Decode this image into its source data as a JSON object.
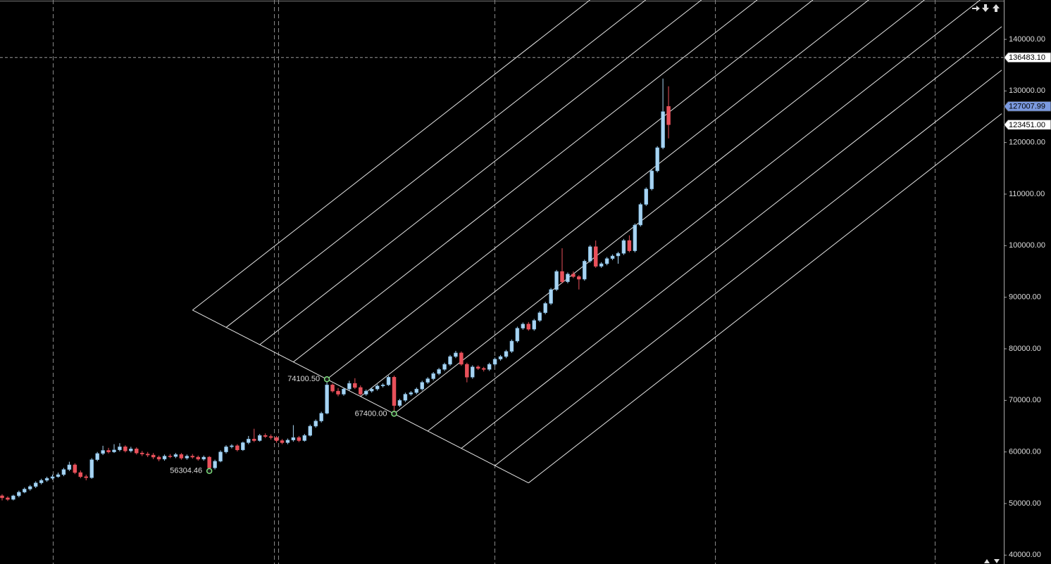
{
  "chart_data": {
    "type": "candlestick",
    "up_color": "#a8d4f2",
    "down_color": "#e8505a",
    "ylim": [
      38273,
      147636
    ],
    "yticks": [
      {
        "value": 40000,
        "label": "40000.00"
      },
      {
        "value": 50000,
        "label": "50000.00"
      },
      {
        "value": 60000,
        "label": "60000.00"
      },
      {
        "value": 70000,
        "label": "70000.00"
      },
      {
        "value": 80000,
        "label": "80000.00"
      },
      {
        "value": 90000,
        "label": "90000.00"
      },
      {
        "value": 100000,
        "label": "100000.00"
      },
      {
        "value": 110000,
        "label": "110000.00"
      },
      {
        "value": 120000,
        "label": "120000.00"
      },
      {
        "value": 130000,
        "label": "130000.00"
      },
      {
        "value": 140000,
        "label": "140000.00"
      }
    ],
    "price_tags": [
      {
        "value": 136483.1,
        "label": "136483.10",
        "color": "#ffffff"
      },
      {
        "value": 127007.99,
        "label": "127007.99",
        "color": "#7b9ae0"
      },
      {
        "value": 123451,
        "label": "123451.00",
        "color": "#ffffff"
      }
    ],
    "anchors": [
      {
        "value": 56304.46,
        "label": "56304.46"
      },
      {
        "value": 74100.5,
        "label": "74100.50"
      },
      {
        "value": 67400,
        "label": "67400.00"
      }
    ],
    "candles": [
      [
        51500,
        51800,
        50600,
        51100
      ],
      [
        51100,
        51400,
        50500,
        50800
      ],
      [
        50800,
        51700,
        50600,
        51500
      ],
      [
        51500,
        52500,
        51200,
        52200
      ],
      [
        52200,
        53100,
        52000,
        52800
      ],
      [
        52800,
        53600,
        52500,
        53300
      ],
      [
        53300,
        54300,
        53000,
        54000
      ],
      [
        54000,
        54800,
        53700,
        54500
      ],
      [
        54500,
        55200,
        54200,
        54900
      ],
      [
        54900,
        55600,
        54600,
        55200
      ],
      [
        55200,
        56000,
        55000,
        55600
      ],
      [
        55600,
        56900,
        55300,
        56600
      ],
      [
        56600,
        58100,
        56300,
        57500
      ],
      [
        57500,
        57800,
        55700,
        56000
      ],
      [
        56000,
        56400,
        54900,
        55200
      ],
      [
        55200,
        55600,
        54500,
        55000
      ],
      [
        55000,
        58800,
        54800,
        58500
      ],
      [
        58500,
        60000,
        58200,
        59700
      ],
      [
        59700,
        61200,
        59400,
        60300
      ],
      [
        60300,
        60800,
        59700,
        60000
      ],
      [
        60000,
        61500,
        59800,
        60400
      ],
      [
        60400,
        61700,
        60100,
        61000
      ],
      [
        61000,
        61300,
        59900,
        60200
      ],
      [
        60200,
        61000,
        59900,
        60600
      ],
      [
        60600,
        60900,
        59500,
        59800
      ],
      [
        59800,
        60200,
        59200,
        59600
      ],
      [
        59600,
        60000,
        59000,
        59400
      ],
      [
        59400,
        59800,
        58600,
        59000
      ],
      [
        59000,
        59300,
        58200,
        58600
      ],
      [
        58600,
        59500,
        58300,
        59200
      ],
      [
        59200,
        59600,
        58800,
        59100
      ],
      [
        59100,
        59800,
        58800,
        59500
      ],
      [
        59500,
        59800,
        58500,
        58800
      ],
      [
        58800,
        59500,
        58500,
        59200
      ],
      [
        59200,
        59600,
        58700,
        59000
      ],
      [
        59000,
        59300,
        58300,
        58600
      ],
      [
        58600,
        59300,
        58300,
        59000
      ],
      [
        59000,
        59200,
        56304.46,
        56900
      ],
      [
        56900,
        58500,
        56600,
        58200
      ],
      [
        58200,
        60300,
        58000,
        60000
      ],
      [
        60000,
        61300,
        59700,
        61000
      ],
      [
        61000,
        61500,
        60700,
        61200
      ],
      [
        61200,
        61500,
        60100,
        60400
      ],
      [
        60400,
        62000,
        60200,
        61800
      ],
      [
        61800,
        63100,
        61500,
        62500
      ],
      [
        62500,
        64500,
        61900,
        62200
      ],
      [
        62200,
        63500,
        62000,
        63200
      ],
      [
        63200,
        63600,
        62700,
        63000
      ],
      [
        63000,
        63400,
        62400,
        62800
      ],
      [
        62800,
        63100,
        61800,
        62200
      ],
      [
        62200,
        62500,
        61500,
        61800
      ],
      [
        61800,
        62600,
        61500,
        62300
      ],
      [
        62300,
        65200,
        62000,
        62800
      ],
      [
        62800,
        63100,
        61900,
        62200
      ],
      [
        62200,
        63500,
        62000,
        63200
      ],
      [
        63200,
        65300,
        63000,
        65000
      ],
      [
        65000,
        66300,
        64700,
        66000
      ],
      [
        66000,
        67800,
        65700,
        67500
      ],
      [
        67500,
        74100.5,
        67300,
        73000
      ],
      [
        73000,
        73300,
        71500,
        71800
      ],
      [
        71800,
        72400,
        70800,
        71200
      ],
      [
        71200,
        72500,
        70900,
        72200
      ],
      [
        72200,
        73800,
        71900,
        73300
      ],
      [
        73300,
        74300,
        72200,
        72500
      ],
      [
        72500,
        72900,
        70900,
        71200
      ],
      [
        71200,
        72100,
        70900,
        71800
      ],
      [
        71800,
        72500,
        71500,
        72200
      ],
      [
        72200,
        73100,
        71900,
        72800
      ],
      [
        72800,
        73300,
        72500,
        73000
      ],
      [
        73000,
        74800,
        72800,
        74500
      ],
      [
        74500,
        74800,
        67400,
        69000
      ],
      [
        69000,
        70300,
        68700,
        70000
      ],
      [
        70000,
        71500,
        69700,
        71200
      ],
      [
        71200,
        71800,
        70900,
        71500
      ],
      [
        71500,
        72500,
        71200,
        72200
      ],
      [
        72200,
        73800,
        71900,
        73500
      ],
      [
        73500,
        74500,
        73200,
        74200
      ],
      [
        74200,
        75500,
        73900,
        75200
      ],
      [
        75200,
        76300,
        74900,
        76000
      ],
      [
        76000,
        77300,
        75700,
        77000
      ],
      [
        77000,
        78800,
        76700,
        78500
      ],
      [
        78500,
        79600,
        78200,
        79200
      ],
      [
        79200,
        79500,
        76700,
        77000
      ],
      [
        77000,
        77300,
        73500,
        74500
      ],
      [
        74500,
        76800,
        74200,
        76500
      ],
      [
        76500,
        76800,
        75900,
        76200
      ],
      [
        76200,
        76500,
        75600,
        76000
      ],
      [
        76000,
        77300,
        75700,
        77000
      ],
      [
        77000,
        78300,
        76700,
        78000
      ],
      [
        78000,
        78800,
        77700,
        78500
      ],
      [
        78500,
        79800,
        78200,
        79500
      ],
      [
        79500,
        81800,
        79200,
        81500
      ],
      [
        81500,
        84300,
        81200,
        84000
      ],
      [
        84000,
        85100,
        83700,
        84800
      ],
      [
        84800,
        85200,
        83500,
        83800
      ],
      [
        83800,
        85800,
        83500,
        85500
      ],
      [
        85500,
        87300,
        85200,
        87000
      ],
      [
        87000,
        89100,
        86700,
        88800
      ],
      [
        88800,
        91800,
        88500,
        91500
      ],
      [
        91500,
        95300,
        91200,
        95000
      ],
      [
        95000,
        99500,
        92700,
        93000
      ],
      [
        93000,
        94800,
        92700,
        94500
      ],
      [
        94500,
        95000,
        93700,
        94000
      ],
      [
        94000,
        94300,
        91500,
        93500
      ],
      [
        93500,
        97300,
        93200,
        97000
      ],
      [
        97000,
        100100,
        96700,
        99800
      ],
      [
        99800,
        101000,
        95700,
        96000
      ],
      [
        96000,
        96800,
        95700,
        96500
      ],
      [
        96500,
        97800,
        96200,
        97500
      ],
      [
        97500,
        98300,
        97200,
        98000
      ],
      [
        98000,
        98800,
        96500,
        98500
      ],
      [
        98500,
        101300,
        98200,
        101000
      ],
      [
        101000,
        102000,
        98700,
        99000
      ],
      [
        99000,
        104300,
        98700,
        104000
      ],
      [
        104000,
        108300,
        103700,
        108000
      ],
      [
        108000,
        111300,
        107700,
        111000
      ],
      [
        111000,
        114800,
        110700,
        114500
      ],
      [
        114500,
        119300,
        114200,
        119000
      ],
      [
        119000,
        132400,
        118700,
        126000
      ],
      [
        127007.99,
        130900,
        120800,
        123451
      ]
    ]
  }
}
